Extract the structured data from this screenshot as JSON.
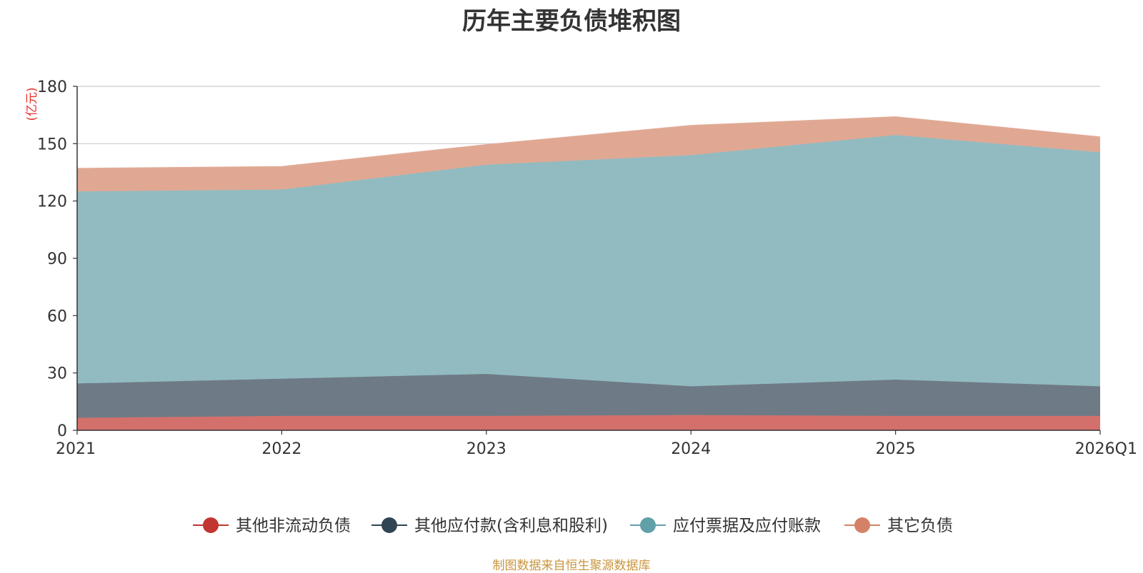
{
  "chart_data": {
    "type": "area",
    "stacked": true,
    "title": "历年主要负债堆积图",
    "unit": "(亿元)",
    "categories": [
      "2021",
      "2022",
      "2023",
      "2024",
      "2025",
      "2026Q1"
    ],
    "ylim": [
      0,
      180
    ],
    "yticks": [
      0,
      30,
      60,
      90,
      120,
      150,
      180
    ],
    "grid": true,
    "legend_position": "bottom",
    "series": [
      {
        "name": "其他非流动负债",
        "color": "#c23531",
        "fill": "#d4706b",
        "values": [
          6.5,
          7.5,
          7.5,
          8.0,
          7.5,
          7.5
        ]
      },
      {
        "name": "其他应付款(含利息和股利)",
        "color": "#2f4554",
        "fill": "#6e7b86",
        "values": [
          18.0,
          19.5,
          22.0,
          15.0,
          19.0,
          15.5
        ]
      },
      {
        "name": "应付票据及应付账款",
        "color": "#61a0a8",
        "fill": "#92bbc1",
        "values": [
          100.5,
          99.0,
          109.5,
          121.0,
          128.0,
          122.5
        ]
      },
      {
        "name": "其它负债",
        "color": "#d48265",
        "fill": "#e0a893",
        "values": [
          12.0,
          12.0,
          10.5,
          15.5,
          9.5,
          8.0
        ]
      }
    ]
  },
  "source_note": "制图数据来自恒生聚源数据库"
}
